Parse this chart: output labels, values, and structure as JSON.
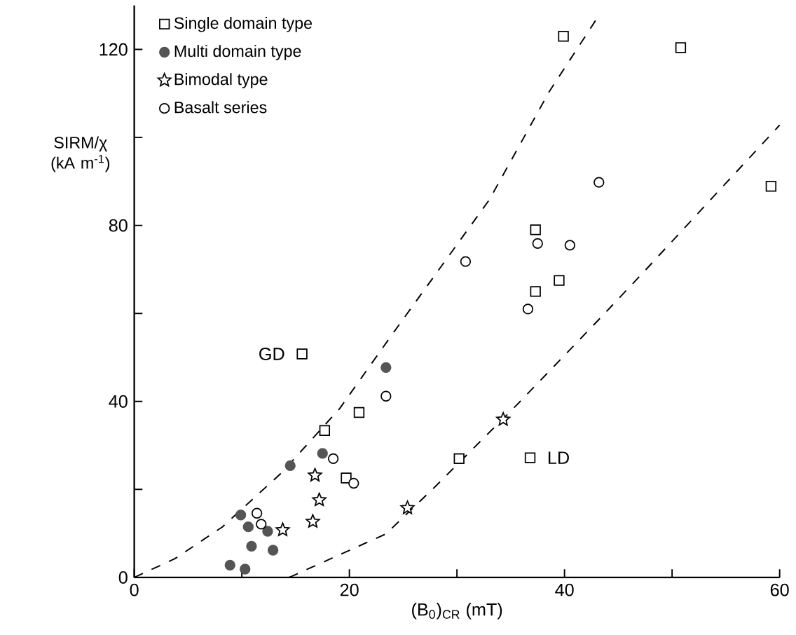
{
  "chart_data": {
    "type": "scatter",
    "xlabel": "(B$_{0}$)$_{CR}$ (mT)",
    "ylabel": "SIRM/χ (kA m$^{-1}$)",
    "xlim": [
      0,
      60
    ],
    "ylim": [
      0,
      130
    ],
    "xticks": [
      0,
      {
        "value": 10,
        "label": null
      },
      20,
      {
        "value": 30,
        "label": null
      },
      40,
      {
        "value": 50,
        "label": null
      },
      60
    ],
    "yticks": [
      0,
      {
        "value": 20,
        "label": null
      },
      40,
      {
        "value": 60,
        "label": null
      },
      80,
      {
        "value": 100,
        "label": null
      },
      120
    ],
    "legend": "top left",
    "annotations": [
      {
        "text": "GD",
        "x": 15.6,
        "y": 50.8
      },
      {
        "text": "LD",
        "x": 36.8,
        "y": 27.2
      }
    ],
    "series": [
      {
        "name": "Single domain type",
        "color": "#000000",
        "marker": "square",
        "x": [
          39.9,
          50.8,
          59.2,
          37.3,
          37.3,
          39.5,
          36.8,
          30.2,
          15.6,
          20.9,
          17.7,
          19.7
        ],
        "values": [
          123,
          120.4,
          88.9,
          79,
          65,
          67.5,
          27.2,
          27,
          50.8,
          37.5,
          33.4,
          22.6
        ]
      },
      {
        "name": "Multi domain type",
        "color": "#555555",
        "marker": "circle",
        "x": [
          23.4,
          14.5,
          17.5,
          9.9,
          10.6,
          12.4,
          10.9,
          12.9,
          8.9,
          10.3
        ],
        "values": [
          47.7,
          25.4,
          28.2,
          14.2,
          11.5,
          10.5,
          7.1,
          6.2,
          2.8,
          1.9
        ]
      },
      {
        "name": "Bimodal type",
        "color": "#000000",
        "marker": "star",
        "x": [
          16.8,
          17.2,
          16.6,
          13.8,
          34.3,
          25.4
        ],
        "values": [
          23.2,
          17.6,
          12.7,
          10.8,
          35.9,
          15.8
        ]
      },
      {
        "name": "Basalt series",
        "color": "#000000",
        "marker": "circle",
        "x": [
          23.4,
          18.5,
          20.4,
          11.4,
          11.8,
          43.2,
          37.5,
          40.5,
          30.8,
          36.6
        ],
        "values": [
          41.2,
          27,
          21.4,
          14.6,
          12.1,
          89.8,
          75.9,
          75.5,
          71.8,
          61
        ]
      },
      {
        "type": "line",
        "color": "#000000",
        "marker": "none",
        "line_style": "dashed",
        "x": [
          0,
          3.8,
          8.2,
          13.7,
          19.1,
          24.2,
          33,
          38.6,
          43
        ],
        "values": [
          0,
          4.3,
          11.5,
          23.8,
          38.4,
          56,
          85.8,
          110.5,
          127
        ]
      },
      {
        "type": "line",
        "color": "#000000",
        "marker": "none",
        "line_style": "dashed",
        "x": [
          14.4,
          23.4,
          28,
          35.6,
          42.8,
          47.2,
          60
        ],
        "values": [
          0,
          9.9,
          20.7,
          39.3,
          57.6,
          69,
          102.8
        ]
      }
    ]
  }
}
